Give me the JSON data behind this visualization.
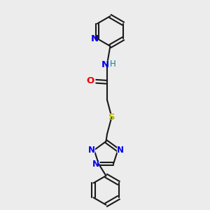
{
  "bg_color": "#ececec",
  "bond_color": "#1a1a1a",
  "N_color": "#0000ee",
  "O_color": "#ee0000",
  "S_color": "#bbbb00",
  "H_color": "#008888",
  "line_width": 1.5,
  "font_size": 8.5,
  "fig_size": [
    3.0,
    3.0
  ],
  "dpi": 100,
  "xlim": [
    0,
    10
  ],
  "ylim": [
    0,
    10
  ]
}
